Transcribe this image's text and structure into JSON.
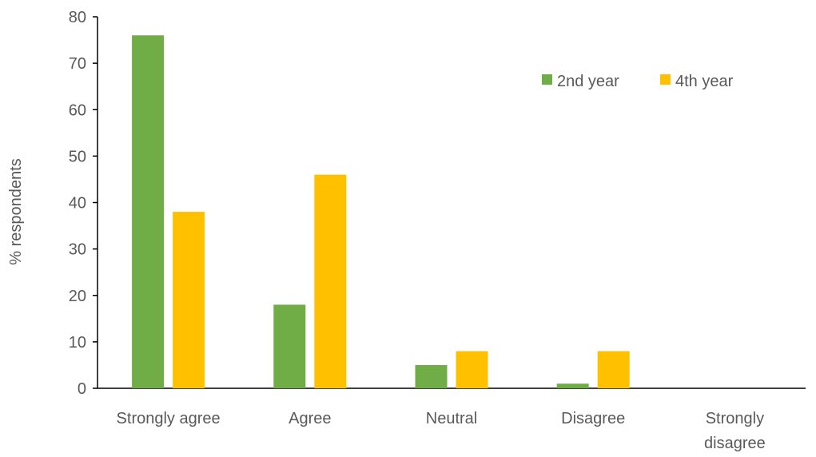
{
  "chart_data": {
    "type": "bar",
    "title": "",
    "xlabel": "",
    "ylabel": "% respondents",
    "ylim": [
      0,
      80
    ],
    "yticks": [
      0,
      10,
      20,
      30,
      40,
      50,
      60,
      70,
      80
    ],
    "categories": [
      [
        "Strongly agree"
      ],
      [
        "Agree"
      ],
      [
        "Neutral"
      ],
      [
        "Disagree"
      ],
      [
        "Strongly",
        "disagree"
      ]
    ],
    "series": [
      {
        "name": "2nd year",
        "color": "#70ad47",
        "values": [
          76,
          18,
          5,
          1,
          0
        ]
      },
      {
        "name": "4th year",
        "color": "#ffc000",
        "values": [
          38,
          46,
          8,
          8,
          0
        ]
      }
    ],
    "grid": false,
    "legend": "top-right"
  }
}
